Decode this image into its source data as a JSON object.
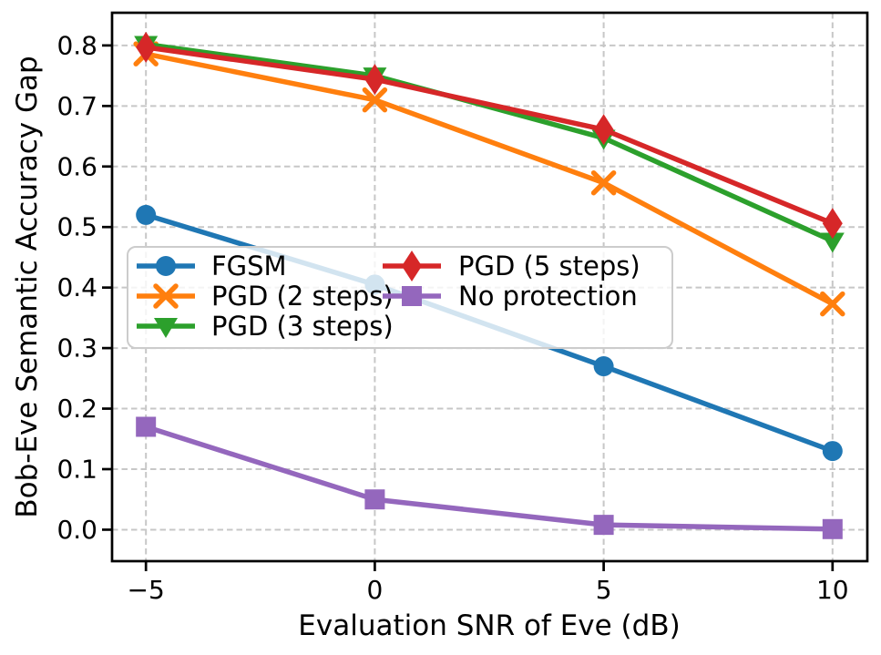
{
  "chart_data": {
    "type": "line",
    "title": "",
    "xlabel": "Evaluation SNR of Eve (dB)",
    "ylabel": "Bob-Eve Semantic Accuracy Gap",
    "x": [
      -5,
      0,
      5,
      10
    ],
    "x_tick_labels": [
      "−5",
      "0",
      "5",
      "10"
    ],
    "y_ticks": [
      0.0,
      0.1,
      0.2,
      0.3,
      0.4,
      0.5,
      0.6,
      0.7,
      0.8
    ],
    "y_tick_labels": [
      "0.0",
      "0.1",
      "0.2",
      "0.3",
      "0.4",
      "0.5",
      "0.6",
      "0.7",
      "0.8"
    ],
    "xlim": [
      -5.74,
      10.76
    ],
    "ylim": [
      -0.052,
      0.854
    ],
    "grid": true,
    "grid_style": "dashed",
    "legend_position": "center-left",
    "legend_columns": 2,
    "series": [
      {
        "name": "FGSM",
        "color": "#1f77b4",
        "marker": "circle",
        "values": [
          0.52,
          0.405,
          0.27,
          0.13
        ]
      },
      {
        "name": "PGD (2 steps)",
        "color": "#ff7f0e",
        "marker": "x",
        "values": [
          0.786,
          0.71,
          0.573,
          0.373
        ]
      },
      {
        "name": "PGD (3 steps)",
        "color": "#2ca02c",
        "marker": "triangle-down",
        "values": [
          0.802,
          0.75,
          0.647,
          0.477
        ]
      },
      {
        "name": "PGD (5 steps)",
        "color": "#d62728",
        "marker": "thin-diamond",
        "values": [
          0.797,
          0.744,
          0.661,
          0.506
        ]
      },
      {
        "name": "No protection",
        "color": "#9467bd",
        "marker": "square",
        "values": [
          0.17,
          0.05,
          0.008,
          0.001
        ]
      }
    ],
    "colors": {
      "grid": "#c7c7c7",
      "spine": "#000000",
      "legend_border": "#cccccc",
      "legend_background": "rgba(255,255,255,0.8)"
    }
  }
}
